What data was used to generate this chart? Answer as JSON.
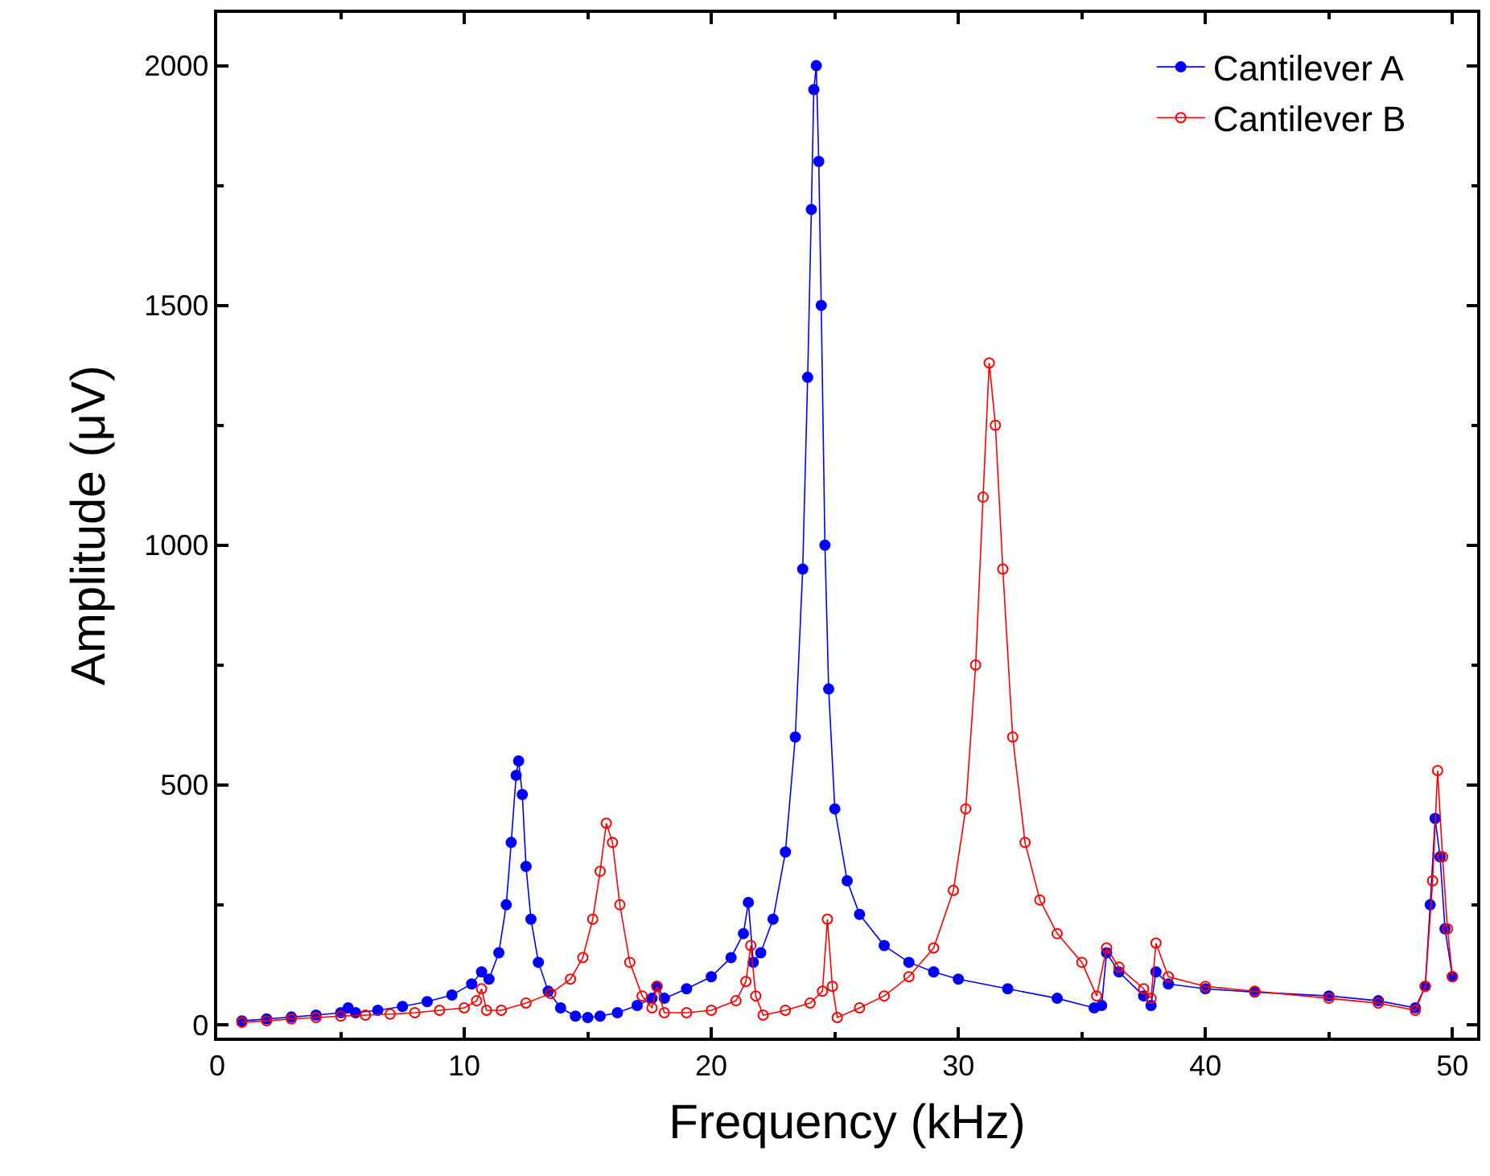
{
  "chart_data": {
    "type": "line",
    "xlabel": "Frequency (kHz)",
    "ylabel": "Amplitude (μV)",
    "xlim": [
      0,
      51
    ],
    "xticks": [
      0,
      10,
      20,
      30,
      40,
      50
    ],
    "ylim": [
      -27,
      2110
    ],
    "yticks": [
      0,
      500,
      1000,
      1500,
      2000
    ],
    "legend": "top right",
    "marker": "circle",
    "line_style": "solid",
    "series": [
      {
        "name": "Cantilever A",
        "color": "#0000ff",
        "x": [
          1.0,
          2,
          3,
          4,
          5,
          5.3,
          5.6,
          6.5,
          7.5,
          8.5,
          9.5,
          10.3,
          10.7,
          11.0,
          11.4,
          11.7,
          11.9,
          12.1,
          12.2,
          12.35,
          12.5,
          12.7,
          13.0,
          13.4,
          13.9,
          14.5,
          15.0,
          15.5,
          16.2,
          17.0,
          17.6,
          17.8,
          18.1,
          19.0,
          20.0,
          20.8,
          21.3,
          21.5,
          21.7,
          22.0,
          22.5,
          23.0,
          23.4,
          23.7,
          23.9,
          24.05,
          24.15,
          24.25,
          24.35,
          24.45,
          24.6,
          24.75,
          25.0,
          25.5,
          26.0,
          27.0,
          28.0,
          29.0,
          30.0,
          32.0,
          34.0,
          35.5,
          35.8,
          36.0,
          36.5,
          37.5,
          37.8,
          38.0,
          38.5,
          40,
          42,
          45,
          47,
          48.5,
          48.9,
          49.1,
          49.3,
          49.5,
          49.7,
          50.0
        ],
        "values": [
          8,
          12,
          16,
          20,
          25,
          35,
          25,
          30,
          38,
          48,
          62,
          85,
          110,
          95,
          150,
          250,
          380,
          520,
          550,
          480,
          330,
          220,
          130,
          70,
          35,
          18,
          15,
          18,
          25,
          40,
          55,
          80,
          55,
          75,
          100,
          140,
          190,
          255,
          130,
          150,
          220,
          360,
          600,
          950,
          1350,
          1700,
          1950,
          2000,
          1800,
          1500,
          1000,
          700,
          450,
          300,
          230,
          165,
          130,
          110,
          95,
          75,
          55,
          35,
          40,
          150,
          110,
          60,
          40,
          110,
          85,
          75,
          68,
          60,
          50,
          35,
          80,
          250,
          430,
          350,
          200,
          100
        ]
      },
      {
        "name": "Cantilever B",
        "color": "#ff0000",
        "x": [
          1.0,
          2,
          3,
          4,
          5,
          6,
          7,
          8,
          9,
          10,
          10.5,
          10.7,
          10.9,
          11.5,
          12.5,
          13.5,
          14.3,
          14.8,
          15.2,
          15.5,
          15.75,
          16.0,
          16.3,
          16.7,
          17.2,
          17.6,
          17.8,
          18.1,
          19,
          20,
          21,
          21.4,
          21.6,
          21.8,
          22.1,
          23,
          24,
          24.5,
          24.7,
          24.9,
          25.1,
          26,
          27,
          28,
          29,
          29.8,
          30.3,
          30.7,
          31.0,
          31.25,
          31.5,
          31.8,
          32.2,
          32.7,
          33.3,
          34,
          35,
          35.6,
          36.0,
          36.5,
          37.5,
          37.8,
          38.0,
          38.5,
          40,
          42,
          45,
          47,
          48.5,
          48.9,
          49.2,
          49.4,
          49.6,
          49.8,
          50.0
        ],
        "values": [
          5,
          8,
          12,
          15,
          18,
          20,
          22,
          25,
          30,
          35,
          50,
          75,
          30,
          30,
          45,
          65,
          95,
          140,
          220,
          320,
          420,
          380,
          250,
          130,
          60,
          35,
          80,
          25,
          25,
          30,
          50,
          90,
          165,
          60,
          20,
          30,
          45,
          70,
          220,
          80,
          15,
          35,
          60,
          100,
          160,
          280,
          450,
          750,
          1100,
          1380,
          1250,
          950,
          600,
          380,
          260,
          190,
          130,
          60,
          160,
          120,
          75,
          55,
          170,
          100,
          80,
          70,
          55,
          45,
          30,
          80,
          300,
          530,
          350,
          200,
          100
        ]
      }
    ]
  }
}
